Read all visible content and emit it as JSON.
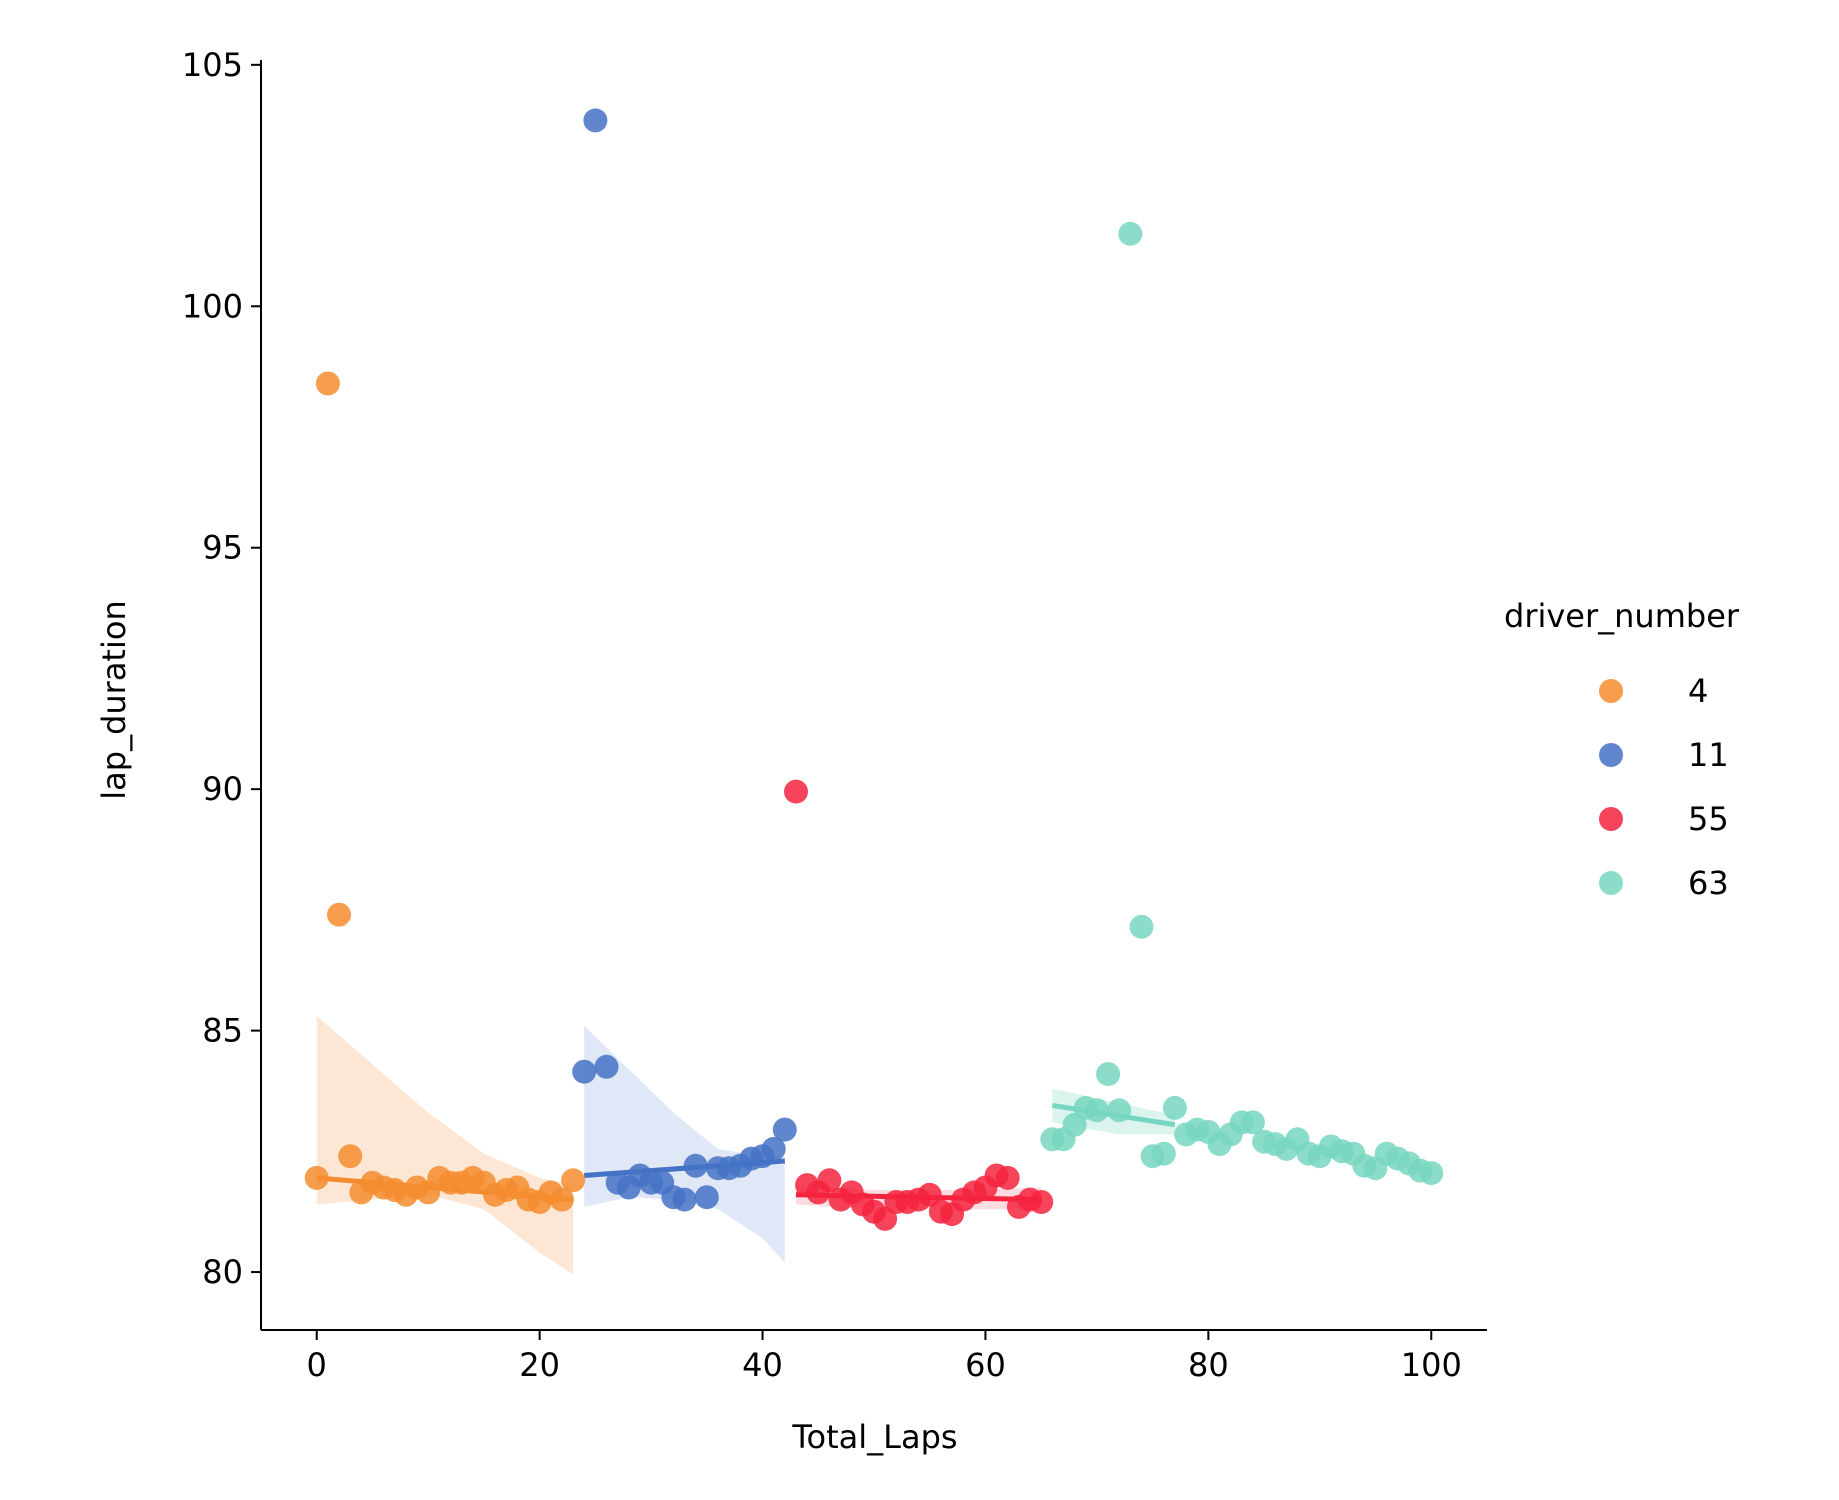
{
  "chart_data": {
    "type": "scatter",
    "title": "",
    "xlabel": "Total_Laps",
    "ylabel": "lap_duration",
    "xlim": [
      -5,
      105
    ],
    "ylim": [
      78.8,
      105.1
    ],
    "xticks": [
      0,
      20,
      40,
      60,
      80,
      100
    ],
    "yticks": [
      80,
      85,
      90,
      95,
      100,
      105
    ],
    "grid": false,
    "legend": {
      "title": "driver_number",
      "position": "right"
    },
    "series": [
      {
        "name": "4",
        "color": "#f48c2f",
        "band_color": "#fde3cd",
        "x": [
          0,
          1,
          2,
          3,
          4,
          5,
          6,
          7,
          8,
          9,
          10,
          11,
          12,
          13,
          14,
          15,
          16,
          17,
          18,
          19,
          20,
          21,
          22,
          23
        ],
        "y": [
          81.95,
          98.4,
          87.4,
          82.4,
          81.65,
          81.85,
          81.75,
          81.7,
          81.6,
          81.75,
          81.65,
          81.95,
          81.85,
          81.85,
          81.95,
          81.85,
          81.6,
          81.7,
          81.75,
          81.5,
          81.45,
          81.65,
          81.5,
          81.9
        ],
        "fit": [
          [
            0,
            81.95
          ],
          [
            23,
            81.5
          ]
        ],
        "band": {
          "x": [
            0,
            5,
            10,
            15,
            20,
            23
          ],
          "upper": [
            85.3,
            84.3,
            83.3,
            82.45,
            81.95,
            81.8
          ],
          "lower": [
            81.4,
            81.5,
            81.6,
            81.3,
            80.4,
            79.95
          ]
        }
      },
      {
        "name": "11",
        "color": "#4472c4",
        "band_color": "#dbe3f4",
        "x": [
          24,
          25,
          26,
          27,
          28,
          29,
          30,
          31,
          32,
          33,
          34,
          35,
          36,
          37,
          38,
          39,
          40,
          41,
          42
        ],
        "y": [
          84.15,
          103.85,
          84.25,
          81.85,
          81.75,
          82.0,
          81.85,
          81.85,
          81.55,
          81.5,
          82.2,
          81.55,
          82.15,
          82.15,
          82.2,
          82.35,
          82.4,
          82.55,
          82.95
        ],
        "fit": [
          [
            24,
            82.0
          ],
          [
            42,
            82.3
          ]
        ],
        "band": {
          "x": [
            24,
            28,
            32,
            36,
            40,
            42
          ],
          "upper": [
            85.1,
            84.2,
            83.3,
            82.55,
            82.4,
            82.4
          ],
          "lower": [
            81.35,
            81.55,
            81.5,
            81.3,
            80.7,
            80.2
          ]
        }
      },
      {
        "name": "55",
        "color": "#f5233e",
        "band_color": "#fbd6dc",
        "x": [
          43,
          44,
          45,
          46,
          47,
          48,
          49,
          50,
          51,
          52,
          53,
          54,
          55,
          56,
          57,
          58,
          59,
          60,
          61,
          62,
          63,
          64,
          65
        ],
        "y": [
          89.95,
          81.8,
          81.65,
          81.9,
          81.5,
          81.65,
          81.4,
          81.25,
          81.1,
          81.45,
          81.45,
          81.5,
          81.6,
          81.25,
          81.2,
          81.5,
          81.65,
          81.75,
          82.0,
          81.95,
          81.35,
          81.5,
          81.45
        ],
        "fit": [
          [
            43,
            81.6
          ],
          [
            65,
            81.5
          ]
        ],
        "band": {
          "x": [
            43,
            50,
            58,
            65
          ],
          "upper": [
            81.8,
            81.7,
            81.7,
            81.75
          ],
          "lower": [
            81.4,
            81.3,
            81.3,
            81.3
          ]
        }
      },
      {
        "name": "63",
        "color": "#77d6c0",
        "band_color": "#d5f2ea",
        "x": [
          66,
          67,
          68,
          69,
          70,
          71,
          72,
          73,
          74,
          75,
          76,
          77,
          78,
          79,
          80,
          81,
          82,
          83,
          84,
          85,
          86,
          87,
          88,
          89,
          90,
          91,
          92,
          93,
          94,
          95,
          96,
          97,
          98,
          99,
          100
        ],
        "y": [
          82.75,
          82.75,
          83.05,
          83.4,
          83.35,
          84.1,
          83.35,
          101.5,
          87.15,
          82.4,
          82.45,
          83.4,
          82.85,
          82.95,
          82.9,
          82.65,
          82.85,
          83.1,
          83.1,
          82.7,
          82.65,
          82.55,
          82.75,
          82.45,
          82.4,
          82.6,
          82.5,
          82.45,
          82.2,
          82.15,
          82.45,
          82.35,
          82.25,
          82.1,
          82.05
        ],
        "fit": [
          [
            66,
            83.45
          ],
          [
            77,
            83.05
          ]
        ],
        "band": {
          "x": [
            66,
            72,
            77
          ],
          "upper": [
            83.8,
            83.5,
            83.25
          ],
          "lower": [
            83.1,
            82.85,
            82.85
          ]
        }
      }
    ]
  }
}
